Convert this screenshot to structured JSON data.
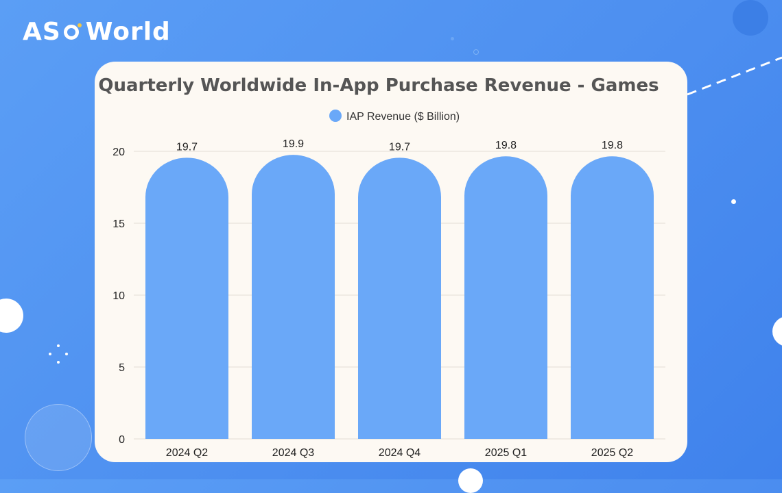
{
  "brand": {
    "logo_text_left": "AS",
    "logo_text_right": "World"
  },
  "colors": {
    "background": "#4d8ff0",
    "card": "#fdf9f3",
    "bar": "#6aa8f8",
    "accent": "#f5c842"
  },
  "chart_data": {
    "type": "bar",
    "title": "Quarterly Worldwide In-App Purchase Revenue - Games",
    "categories": [
      "2024 Q2",
      "2024 Q3",
      "2024 Q4",
      "2025 Q1",
      "2025 Q2"
    ],
    "series": [
      {
        "name": "IAP Revenue ($ Billion)",
        "values": [
          19.7,
          19.9,
          19.7,
          19.8,
          19.8
        ]
      }
    ],
    "data_labels": [
      "19.7",
      "19.9",
      "19.7",
      "19.8",
      "19.8"
    ],
    "ylim": [
      0,
      20
    ],
    "yticks": [
      0,
      5,
      10,
      15,
      20
    ],
    "grid": true,
    "legend_position": "top-center"
  }
}
